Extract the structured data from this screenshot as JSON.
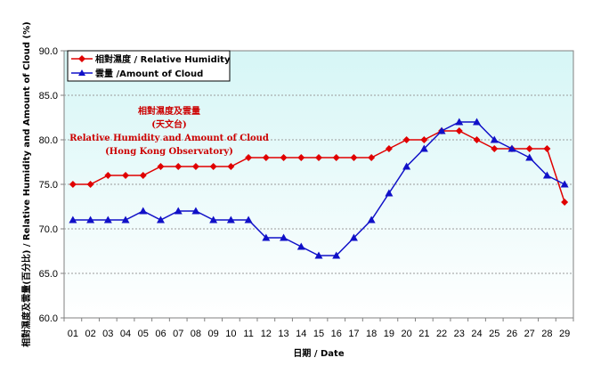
{
  "chart_data": {
    "type": "line",
    "title_lines": [
      "相對濕度及雲量",
      "(天文台)",
      "Relative Humidity and Amount of Cloud",
      "(Hong Kong Observatory)"
    ],
    "xlabel": "日期 / Date",
    "ylabel": "相對濕度及雲量(百分比) / Relative Humidity and Amount of Cloud (%)",
    "ylim": [
      60,
      90
    ],
    "yticks": [
      "60.0",
      "65.0",
      "70.0",
      "75.0",
      "80.0",
      "85.0",
      "90.0"
    ],
    "categories": [
      "01",
      "02",
      "03",
      "04",
      "05",
      "06",
      "07",
      "08",
      "09",
      "10",
      "11",
      "12",
      "13",
      "14",
      "15",
      "16",
      "17",
      "18",
      "19",
      "20",
      "21",
      "22",
      "23",
      "24",
      "25",
      "26",
      "27",
      "28",
      "29"
    ],
    "series": [
      {
        "name": "相對濕度 / Relative Humidity",
        "color": "#e00000",
        "marker": "diamond",
        "values": [
          75,
          75,
          76,
          76,
          76,
          77,
          77,
          77,
          77,
          77,
          78,
          78,
          78,
          78,
          78,
          78,
          78,
          78,
          79,
          80,
          80,
          81,
          81,
          80,
          79,
          79,
          79,
          79,
          73
        ]
      },
      {
        "name": "雲量 /Amount of Cloud",
        "color": "#1010c8",
        "marker": "triangle",
        "values": [
          71,
          71,
          71,
          71,
          72,
          71,
          72,
          72,
          71,
          71,
          71,
          69,
          69,
          68,
          67,
          67,
          69,
          71,
          74,
          77,
          79,
          81,
          82,
          82,
          80,
          79,
          78,
          76,
          75
        ]
      }
    ],
    "grid": true,
    "legend": "top-left"
  }
}
